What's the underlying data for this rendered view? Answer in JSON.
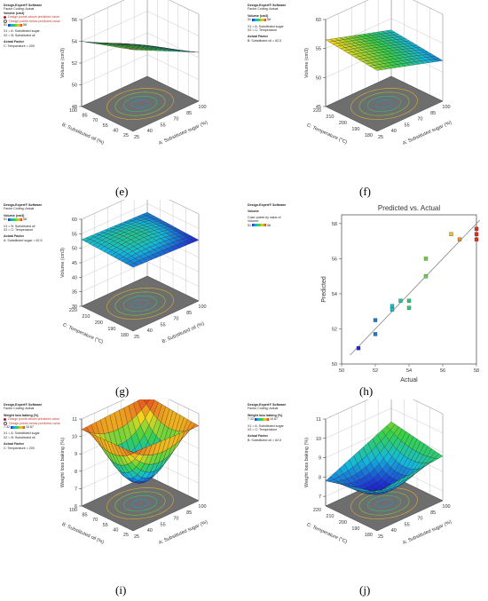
{
  "panels": [
    {
      "id": "e",
      "caption": "(e)",
      "header": {
        "software": "Design-Expert® Software",
        "coding": "Factor Coding: Actual",
        "response_label": "Volume (cm3)",
        "legend_items": [
          "Design points above predicted value",
          "Design points below predicted value"
        ],
        "range_low": "51",
        "range_high": "58",
        "x1": "X1 = A: Substituted sugar",
        "x2": "X2 = B: Substituted oil",
        "actual_factor_title": "Actual Factor",
        "actual_factor": "C: Temperature = 200"
      }
    },
    {
      "id": "f",
      "caption": "(f)",
      "header": {
        "software": "Design-Expert® Software",
        "coding": "Factor Coding: Actual",
        "response_label": "Volume (cm3)",
        "range_low": "51",
        "range_high": "58",
        "x1": "X1 = A: Substituted sugar",
        "x2": "X2 = C: Temperature",
        "actual_factor_title": "Actual Factor",
        "actual_factor": "B: Substituted oil = 62.5"
      }
    },
    {
      "id": "g",
      "caption": "(g)",
      "header": {
        "software": "Design-Expert® Software",
        "coding": "Factor Coding: Actual",
        "response_label": "Volume (cm3)",
        "range_low": "51",
        "range_high": "58",
        "x1": "X1 = B: Substituted oil",
        "x2": "X2 = C: Temperature",
        "actual_factor_title": "Actual Factor",
        "actual_factor": "A: Substituted sugar = 62.5"
      }
    },
    {
      "id": "h",
      "caption": "(h)",
      "header": {
        "software": "Design-Expert® Software",
        "response_label": "Volume",
        "color_note": "Color points by value of Volume:",
        "range_low": "51",
        "range_high": "58"
      }
    },
    {
      "id": "i",
      "caption": "(i)",
      "header": {
        "software": "Design-Expert® Software",
        "coding": "Factor Coding: Actual",
        "response_label": "Weight loss baking (%)",
        "legend_items": [
          "Design points above predicted value",
          "Design points below predicted value"
        ],
        "range_low": "7.32",
        "range_high": "10.67",
        "x1": "X1 = A: Substituted sugar",
        "x2": "X2 = B: Substituted oil",
        "actual_factor_title": "Actual Factor",
        "actual_factor": "C: Temperature = 200"
      }
    },
    {
      "id": "j",
      "caption": "(j)",
      "header": {
        "software": "Design-Expert® Software",
        "coding": "Factor Coding: Actual",
        "response_label": "Weight loss baking (%)",
        "range_low": "7.32",
        "range_high": "10.67",
        "x1": "X1 = A: Substituted sugar",
        "x2": "X2 = C: Temperature",
        "actual_factor_title": "Actual Factor",
        "actual_factor": "B: Substituted oil = 62.5"
      }
    }
  ],
  "chart_data": [
    {
      "type": "surface3d",
      "panel": "e",
      "title": "",
      "xlabel": "A: Substituted sugar (%)",
      "ylabel": "B: Substituted oil (%)",
      "zlabel": "Volume (cm3)",
      "x_ticks": [
        "25",
        "40",
        "55",
        "70",
        "85",
        "100"
      ],
      "y_ticks": [
        "25",
        "40",
        "55",
        "70",
        "85",
        "100"
      ],
      "z_ticks": [
        "48",
        "50",
        "52",
        "54",
        "56"
      ],
      "x": [
        25,
        100
      ],
      "y": [
        25,
        100
      ],
      "zlim": [
        48,
        56
      ],
      "corners": [
        55.5,
        52.5,
        54.0,
        50.5
      ],
      "curvature": 0.3,
      "colormap_range": [
        51,
        58
      ]
    },
    {
      "type": "surface3d",
      "panel": "f",
      "title": "",
      "xlabel": "A: Substituted sugar (%)",
      "ylabel": "C: Temperature (°C)",
      "zlabel": "Volume (cm3)",
      "x_ticks": [
        "25",
        "40",
        "55",
        "70",
        "85",
        "100"
      ],
      "y_ticks": [
        "180",
        "190",
        "200",
        "210",
        "220"
      ],
      "z_ticks": [
        "45",
        "50",
        "55",
        "60"
      ],
      "x": [
        25,
        100
      ],
      "y": [
        180,
        220
      ],
      "zlim": [
        45,
        60
      ],
      "corners": [
        55.5,
        52.0,
        56.5,
        53.0
      ],
      "curvature": 0.2,
      "colormap_range": [
        51,
        58
      ]
    },
    {
      "type": "surface3d",
      "panel": "g",
      "title": "",
      "xlabel": "B: Substituted oil (%)",
      "ylabel": "C: Temperature (°C)",
      "zlabel": "Volume (cm3)",
      "x_ticks": [
        "25",
        "40",
        "55",
        "70",
        "85",
        "100"
      ],
      "y_ticks": [
        "180",
        "190",
        "200",
        "210",
        "220"
      ],
      "z_ticks": [
        "30",
        "35",
        "40",
        "45",
        "50",
        "55",
        "60"
      ],
      "x": [
        25,
        100
      ],
      "y": [
        180,
        220
      ],
      "zlim": [
        30,
        60
      ],
      "corners": [
        52.0,
        51.0,
        53.0,
        52.0
      ],
      "curvature": 1.5,
      "colormap_range": [
        51,
        58
      ]
    },
    {
      "type": "scatter",
      "panel": "h",
      "title": "Predicted vs. Actual",
      "xlabel": "Actual",
      "ylabel": "Predicted",
      "xlim": [
        50,
        58
      ],
      "ylim": [
        50,
        58.5
      ],
      "x_ticks": [
        "50",
        "52",
        "54",
        "56",
        "58"
      ],
      "y_ticks": [
        "50",
        "52",
        "54",
        "56",
        "58"
      ],
      "points": [
        {
          "x": 51.0,
          "y": 50.9
        },
        {
          "x": 52.0,
          "y": 51.7
        },
        {
          "x": 52.0,
          "y": 52.5
        },
        {
          "x": 53.0,
          "y": 53.1
        },
        {
          "x": 53.0,
          "y": 53.3
        },
        {
          "x": 53.5,
          "y": 53.6
        },
        {
          "x": 54.0,
          "y": 53.2
        },
        {
          "x": 54.0,
          "y": 53.6
        },
        {
          "x": 55.0,
          "y": 55.0
        },
        {
          "x": 55.0,
          "y": 56.0
        },
        {
          "x": 56.5,
          "y": 57.4
        },
        {
          "x": 57.0,
          "y": 57.1
        },
        {
          "x": 58.0,
          "y": 57.1
        },
        {
          "x": 58.0,
          "y": 57.4
        },
        {
          "x": 58.0,
          "y": 57.7
        }
      ],
      "fit_line": [
        [
          50.5,
          50.5
        ],
        [
          58.2,
          58.2
        ]
      ],
      "colormap_range": [
        51,
        58
      ],
      "grid": false
    },
    {
      "type": "surface3d",
      "panel": "i",
      "title": "",
      "xlabel": "A: Substituted sugar (%)",
      "ylabel": "B: Substituted oil (%)",
      "zlabel": "Weight loss baking (%)",
      "x_ticks": [
        "25",
        "40",
        "55",
        "70",
        "85",
        "100"
      ],
      "y_ticks": [
        "25",
        "40",
        "55",
        "70",
        "85",
        "100"
      ],
      "z_ticks": [
        "6",
        "7",
        "8",
        "9",
        "10",
        "11"
      ],
      "x": [
        25,
        100
      ],
      "y": [
        25,
        100
      ],
      "zlim": [
        6,
        11
      ],
      "corners": [
        10.5,
        10.3,
        10.4,
        10.6
      ],
      "curvature": -3.2,
      "colormap_range": [
        7.32,
        10.67
      ]
    },
    {
      "type": "surface3d",
      "panel": "j",
      "title": "",
      "xlabel": "A: Substituted sugar (%)",
      "ylabel": "C: Temperature (°C)",
      "zlabel": "Weight loss baking (%)",
      "x_ticks": [
        "25",
        "40",
        "55",
        "70",
        "85",
        "100"
      ],
      "y_ticks": [
        "180",
        "190",
        "200",
        "210",
        "220"
      ],
      "z_ticks": [
        "7",
        "8",
        "9",
        "10",
        "11"
      ],
      "x": [
        25,
        100
      ],
      "y": [
        180,
        220
      ],
      "zlim": [
        6.5,
        11
      ],
      "corners": [
        8.5,
        8.8,
        7.8,
        9.3
      ],
      "curvature": -1.3,
      "colormap_range": [
        7.32,
        10.67
      ]
    }
  ]
}
